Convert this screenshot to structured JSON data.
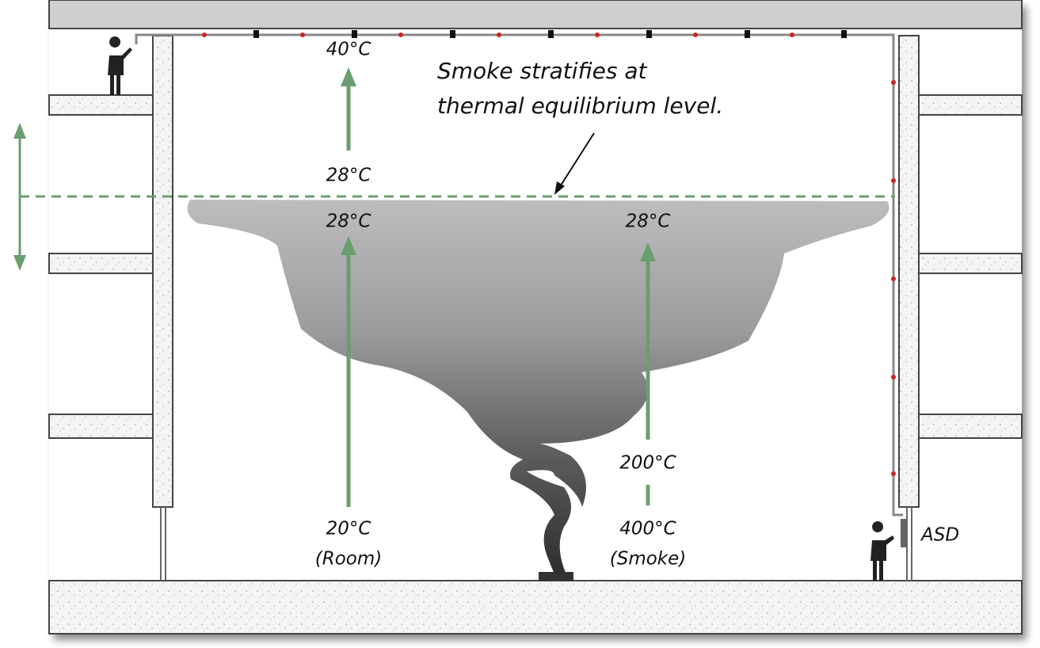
{
  "annotation": [
    "Smoke stratifies at",
    "thermal equilibrium level."
  ],
  "room_column": {
    "top": "40°C",
    "above_layer": "28°C",
    "below_layer": "28°C",
    "bottom": [
      "20°C",
      "(Room)"
    ]
  },
  "smoke_column": {
    "top": "28°C",
    "middle": "200°C",
    "bottom": [
      "400°C",
      "(Smoke)"
    ]
  },
  "device": "ASD"
}
